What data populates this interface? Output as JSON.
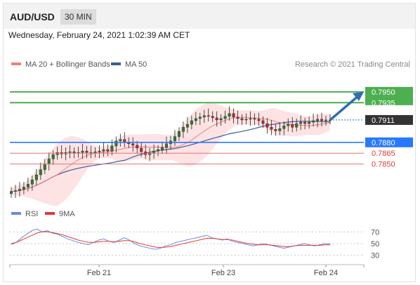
{
  "header": {
    "symbol": "AUD/USD",
    "timeframe": "30 MIN"
  },
  "datetime": "Wednesday, February 24, 2021 1:02:39 AM CET",
  "credit": "Research © 2021 Trading Central",
  "colors": {
    "candle_up": "#2e7d32",
    "candle_down": "#c62828",
    "ma20": "#f08080",
    "bands": "#fde3e3",
    "ma50": "#3a5d9c",
    "resistance": "#4caf50",
    "pivot": "#2979ff",
    "support": "#e57373",
    "current": "#333333",
    "rsi": "#6b8cde",
    "rsi_ma": "#e53935",
    "forecast": "#2e6db4"
  },
  "chart_data": [
    {
      "type": "candlestick",
      "title": "",
      "legend": [
        {
          "name": "MA 20 + Bollinger Bands",
          "color": "#f08080"
        },
        {
          "name": "MA 50",
          "color": "#3a5d9c"
        }
      ],
      "legend_position": "top-left",
      "x_ticks": [
        "Feb 21",
        "Feb 23",
        "Feb 24"
      ],
      "ylim": [
        0.78,
        0.798
      ],
      "levels": [
        {
          "label": "0.7950",
          "value": 0.795,
          "kind": "resistance"
        },
        {
          "label": "0.7935",
          "value": 0.7935,
          "kind": "resistance"
        },
        {
          "label": "0.7911",
          "value": 0.7911,
          "kind": "current"
        },
        {
          "label": "0.7880",
          "value": 0.788,
          "kind": "pivot"
        },
        {
          "label": "0.7865",
          "value": 0.7865,
          "kind": "support"
        },
        {
          "label": "0.7850",
          "value": 0.785,
          "kind": "support"
        }
      ],
      "close_series": [
        0.7812,
        0.7813,
        0.7815,
        0.7818,
        0.7822,
        0.7828,
        0.7835,
        0.7842,
        0.785,
        0.7857,
        0.7863,
        0.7866,
        0.7864,
        0.7866,
        0.7867,
        0.7865,
        0.7866,
        0.7868,
        0.7866,
        0.7865,
        0.7867,
        0.7868,
        0.787,
        0.7868,
        0.7875,
        0.7882,
        0.7884,
        0.788,
        0.7878,
        0.7876,
        0.7872,
        0.7867,
        0.7863,
        0.7865,
        0.7868,
        0.787,
        0.7873,
        0.7878,
        0.7882,
        0.7888,
        0.7895,
        0.7901,
        0.7905,
        0.791,
        0.7913,
        0.7915,
        0.7917,
        0.7916,
        0.7914,
        0.7911,
        0.7913,
        0.7916,
        0.792,
        0.7915,
        0.7913,
        0.7911,
        0.7912,
        0.7913,
        0.7912,
        0.791,
        0.7906,
        0.7901,
        0.7898,
        0.7896,
        0.7899,
        0.7903,
        0.7905,
        0.7901,
        0.7906,
        0.7908,
        0.7906,
        0.7908,
        0.791,
        0.7912,
        0.791,
        0.7911,
        0.7911
      ],
      "forecast": {
        "from": 0.7911,
        "to": 0.795
      }
    },
    {
      "type": "line",
      "title": "",
      "legend": [
        {
          "name": "RSI",
          "color": "#6b8cde"
        },
        {
          "name": "9MA",
          "color": "#e53935"
        }
      ],
      "ylim": [
        20,
        80
      ],
      "y_ticks": [
        70,
        50,
        30
      ],
      "series": [
        {
          "name": "RSI",
          "values": [
            48,
            52,
            60,
            66,
            72,
            75,
            70,
            72,
            68,
            66,
            62,
            58,
            55,
            52,
            50,
            48,
            52,
            56,
            58,
            54,
            52,
            56,
            60,
            56,
            50,
            46,
            44,
            42,
            40,
            42,
            46,
            48,
            52,
            54,
            56,
            58,
            60,
            62,
            64,
            60,
            58,
            56,
            58,
            54,
            52,
            50,
            48,
            46,
            48,
            50,
            48,
            46,
            44,
            42,
            44,
            46,
            48,
            50,
            48,
            46,
            48,
            50,
            49
          ]
        },
        {
          "name": "9MA",
          "values": [
            50,
            52,
            56,
            60,
            64,
            68,
            70,
            70,
            69,
            67,
            65,
            62,
            59,
            56,
            54,
            52,
            52,
            53,
            54,
            54,
            53,
            54,
            55,
            55,
            53,
            50,
            48,
            46,
            44,
            43,
            44,
            45,
            47,
            49,
            51,
            53,
            55,
            57,
            59,
            59,
            58,
            57,
            57,
            56,
            54,
            52,
            50,
            49,
            48,
            48,
            48,
            47,
            46,
            45,
            45,
            46,
            47,
            47,
            47,
            47,
            47,
            48,
            48
          ]
        }
      ]
    }
  ]
}
